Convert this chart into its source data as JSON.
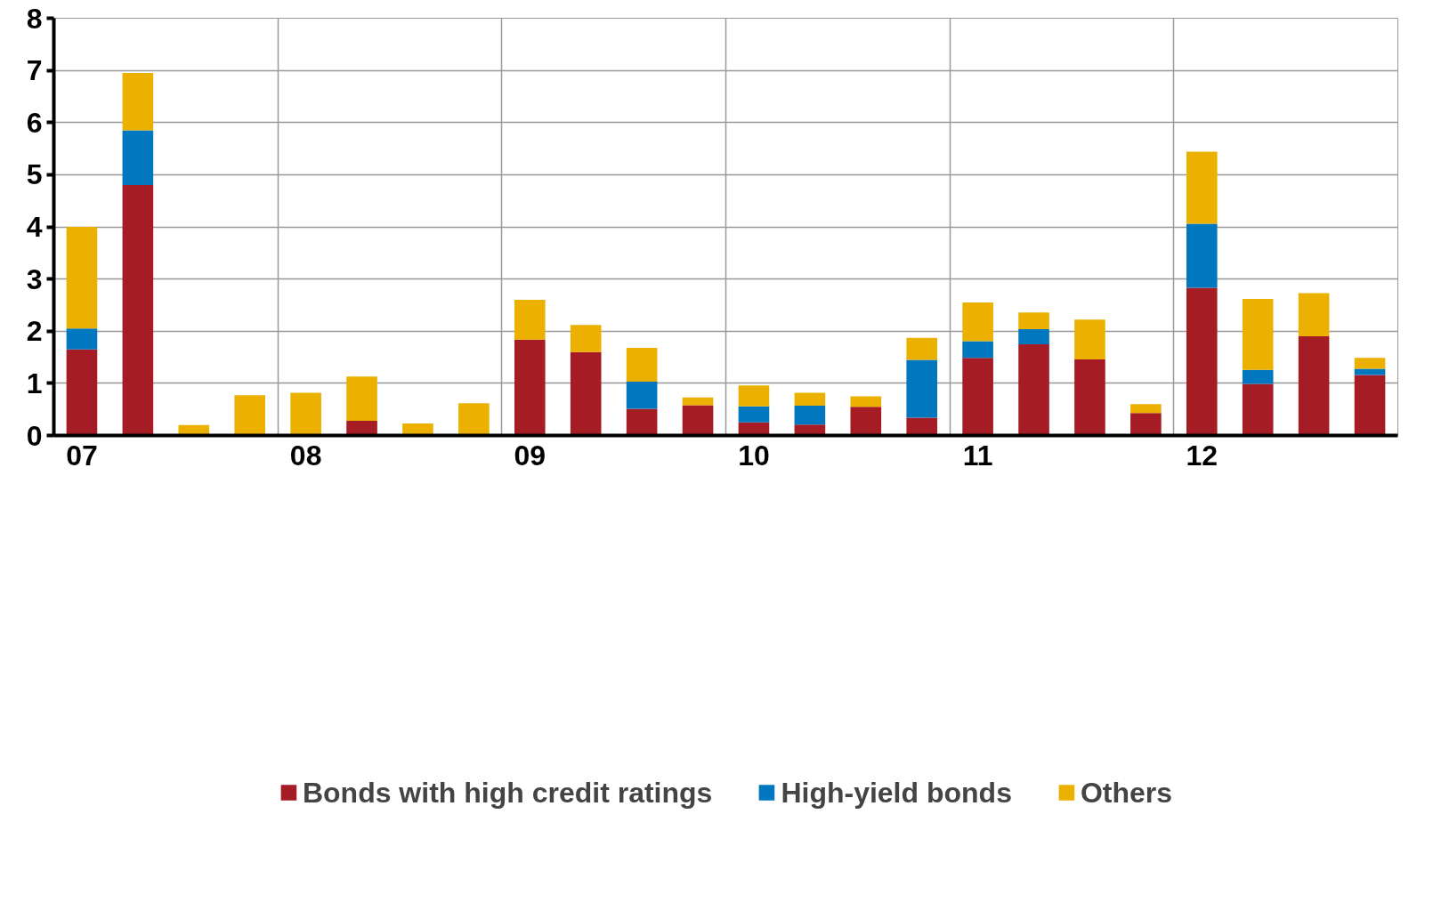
{
  "chart_data": {
    "type": "bar",
    "stacked": true,
    "categories": [
      "07",
      null,
      null,
      null,
      "08",
      null,
      null,
      null,
      "09",
      null,
      null,
      null,
      "10",
      null,
      null,
      null,
      "11",
      null,
      null,
      null,
      "12",
      null,
      null,
      null
    ],
    "series": [
      {
        "name": "Bonds with high credit ratings",
        "color": "#a51c24",
        "values": [
          1.65,
          4.8,
          0,
          0,
          0,
          0.28,
          0,
          0,
          1.84,
          1.6,
          0.51,
          0.58,
          0.25,
          0.21,
          0.55,
          0.34,
          1.49,
          1.75,
          1.46,
          0.43,
          2.83,
          0.99,
          1.9,
          1.16
        ]
      },
      {
        "name": "High-yield bonds",
        "color": "#0077bf",
        "values": [
          0.4,
          1.05,
          0,
          0,
          0,
          0,
          0,
          0,
          0,
          0,
          0.52,
          0,
          0.31,
          0.36,
          0,
          1.11,
          0.32,
          0.29,
          0,
          0,
          1.23,
          0.27,
          0,
          0.12
        ]
      },
      {
        "name": "Others",
        "color": "#ecb100",
        "values": [
          1.95,
          1.1,
          0.2,
          0.77,
          0.82,
          0.85,
          0.23,
          0.62,
          0.76,
          0.52,
          0.65,
          0.15,
          0.4,
          0.25,
          0.2,
          0.42,
          0.74,
          0.32,
          0.76,
          0.17,
          1.38,
          1.36,
          0.83,
          0.21
        ]
      }
    ],
    "ylim": [
      0,
      8
    ],
    "yticks": [
      0,
      1,
      2,
      3,
      4,
      5,
      6,
      7,
      8
    ],
    "grid": true,
    "legend": "bottom"
  }
}
